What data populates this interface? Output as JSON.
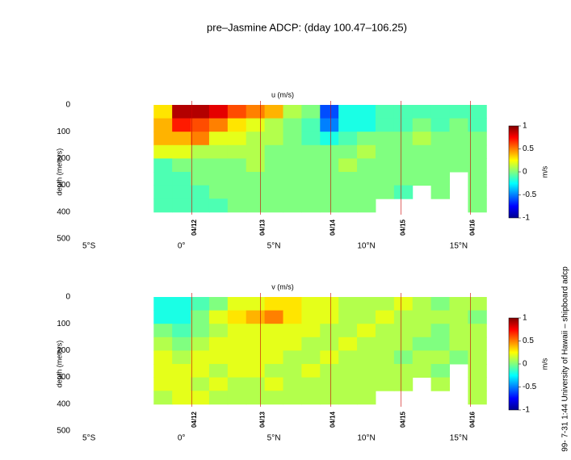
{
  "title": "pre–Jasmine ADCP: (dday 100.47–106.25)",
  "credit": "99- 7-31  1:44 University of Hawaii – shipboard adcp",
  "chart_data": [
    {
      "type": "heatmap",
      "title": "u (m/s)",
      "ylabel": "depth (meters)",
      "x": [
        -1,
        0,
        1,
        2,
        3,
        4,
        5,
        6,
        7,
        8,
        9,
        10,
        11,
        12,
        13,
        14,
        15,
        16
      ],
      "y": [
        25,
        75,
        125,
        175,
        225,
        275,
        325,
        375
      ],
      "values": [
        [
          0.3,
          0.9,
          0.9,
          0.8,
          0.6,
          0.5,
          0.4,
          0.1,
          0.0,
          -0.6,
          -0.2,
          -0.2,
          -0.1,
          -0.1,
          -0.1,
          -0.1,
          -0.1,
          -0.1
        ],
        [
          0.4,
          0.7,
          0.6,
          0.5,
          0.3,
          0.2,
          0.1,
          0.0,
          -0.1,
          -0.5,
          -0.2,
          -0.2,
          -0.1,
          -0.1,
          0,
          -0.1,
          0,
          -0.1
        ],
        [
          0.4,
          0.4,
          0.5,
          0.2,
          0.2,
          0.1,
          0.1,
          0.0,
          -0.1,
          -0.2,
          -0.1,
          0,
          0,
          0,
          0.1,
          0,
          0,
          0
        ],
        [
          0.2,
          0.2,
          0.1,
          0.1,
          0.1,
          0.1,
          0,
          0,
          0,
          0,
          0,
          0.1,
          0,
          0,
          0,
          0,
          0,
          0
        ],
        [
          -0.1,
          0,
          0,
          0,
          0,
          0.1,
          0,
          0,
          0,
          0,
          0.1,
          0,
          0,
          0,
          0,
          0,
          0,
          0
        ],
        [
          -0.1,
          -0.1,
          0,
          0,
          0,
          0,
          0,
          0,
          0,
          0,
          0,
          0,
          0,
          0,
          0,
          0,
          null,
          0
        ],
        [
          -0.1,
          -0.1,
          -0.1,
          0,
          0,
          0,
          0,
          0,
          0,
          0,
          0,
          0,
          0,
          -0.1,
          null,
          0,
          null,
          0
        ],
        [
          -0.1,
          -0.1,
          -0.1,
          -0.1,
          0,
          0,
          0,
          0,
          0,
          0,
          0,
          0,
          null,
          null,
          null,
          null,
          null,
          0
        ]
      ],
      "xlim": [
        -5.75,
        16.4
      ],
      "ylim": [
        0,
        500
      ],
      "y_reversed": true,
      "xticks": [
        {
          "value": -5,
          "label": "5°S"
        },
        {
          "value": 0,
          "label": "0°"
        },
        {
          "value": 5,
          "label": "5°N"
        },
        {
          "value": 10,
          "label": "10°N"
        },
        {
          "value": 15,
          "label": "15°N"
        }
      ],
      "yticks": [
        0,
        100,
        200,
        300,
        400,
        500
      ],
      "colormap": "jet",
      "clim": [
        -1,
        1
      ],
      "cticks": [
        -1,
        -0.5,
        0,
        0.5,
        1
      ],
      "clabel": "m/s",
      "marker_color": "#cc0000",
      "date_markers": [
        {
          "x": 0.57,
          "label": "04/12"
        },
        {
          "x": 4.28,
          "label": "04/13"
        },
        {
          "x": 8.08,
          "label": "04/14"
        },
        {
          "x": 11.88,
          "label": "04/15"
        },
        {
          "x": 15.63,
          "label": "04/16"
        }
      ]
    },
    {
      "type": "heatmap",
      "title": "v (m/s)",
      "ylabel": "depth (meters)",
      "x": [
        -1,
        0,
        1,
        2,
        3,
        4,
        5,
        6,
        7,
        8,
        9,
        10,
        11,
        12,
        13,
        14,
        15,
        16
      ],
      "y": [
        25,
        75,
        125,
        175,
        225,
        275,
        325,
        375
      ],
      "values": [
        [
          -0.2,
          -0.2,
          -0.1,
          0,
          0.2,
          0.2,
          0.3,
          0.3,
          0.2,
          0.2,
          0.1,
          0.1,
          0.1,
          0.2,
          0.1,
          0,
          0.1,
          0.1
        ],
        [
          -0.2,
          -0.2,
          0,
          0.2,
          0.3,
          0.4,
          0.5,
          0.3,
          0.2,
          0.2,
          0.1,
          0.1,
          0.2,
          0.1,
          0.1,
          0.1,
          0.1,
          0
        ],
        [
          0,
          -0.1,
          0,
          0.1,
          0.2,
          0.2,
          0.2,
          0.2,
          0.2,
          0.1,
          0.1,
          0.2,
          0.1,
          0.1,
          0.1,
          0,
          0.1,
          0.1
        ],
        [
          0.1,
          0,
          0.1,
          0.2,
          0.2,
          0.2,
          0.2,
          0.2,
          0.1,
          0.1,
          0.2,
          0.1,
          0.1,
          0.1,
          0,
          0,
          0.1,
          0.1
        ],
        [
          0.2,
          0.1,
          0.2,
          0.2,
          0.2,
          0.2,
          0.2,
          0.1,
          0.1,
          0.2,
          0.1,
          0.1,
          0.1,
          0,
          0.1,
          0.1,
          0,
          0.1
        ],
        [
          0.2,
          0.2,
          0.2,
          0.1,
          0.2,
          0.2,
          0.1,
          0.1,
          0.2,
          0.1,
          0.1,
          0.1,
          0.1,
          0.1,
          0.1,
          0,
          null,
          0.1
        ],
        [
          0.2,
          0.2,
          0.1,
          0.2,
          0.1,
          0.1,
          0.2,
          0.1,
          0.1,
          0.1,
          0.1,
          0.1,
          0.1,
          0.1,
          null,
          0.1,
          null,
          0.1
        ],
        [
          0.1,
          0.2,
          0.2,
          0.1,
          0.1,
          0.1,
          0.1,
          0.1,
          0.1,
          0.1,
          0.1,
          0.1,
          null,
          null,
          null,
          null,
          null,
          0.1
        ]
      ],
      "xlim": [
        -5.75,
        16.4
      ],
      "ylim": [
        0,
        500
      ],
      "y_reversed": true,
      "xticks": [
        {
          "value": -5,
          "label": "5°S"
        },
        {
          "value": 0,
          "label": "0°"
        },
        {
          "value": 5,
          "label": "5°N"
        },
        {
          "value": 10,
          "label": "10°N"
        },
        {
          "value": 15,
          "label": "15°N"
        }
      ],
      "yticks": [
        0,
        100,
        200,
        300,
        400,
        500
      ],
      "colormap": "jet",
      "clim": [
        -1,
        1
      ],
      "cticks": [
        -1,
        -0.5,
        0,
        0.5,
        1
      ],
      "clabel": "m/s",
      "marker_color": "#cc0000",
      "date_markers": [
        {
          "x": 0.57,
          "label": "04/12"
        },
        {
          "x": 4.28,
          "label": "04/13"
        },
        {
          "x": 8.08,
          "label": "04/14"
        },
        {
          "x": 11.88,
          "label": "04/15"
        },
        {
          "x": 15.63,
          "label": "04/16"
        }
      ]
    }
  ]
}
